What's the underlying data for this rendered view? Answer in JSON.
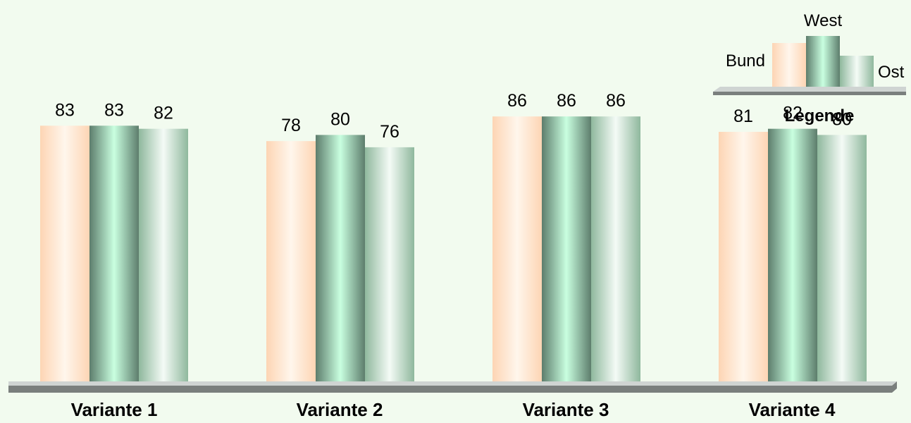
{
  "chart_data": {
    "type": "bar",
    "categories": [
      "Variante 1",
      "Variante 2",
      "Variante 3",
      "Variante 4"
    ],
    "series": [
      {
        "name": "Bund",
        "values": [
          83,
          78,
          86,
          81
        ],
        "colors": [
          "#fdd5b4",
          "#fff6ec"
        ]
      },
      {
        "name": "West",
        "values": [
          83,
          80,
          86,
          82
        ],
        "colors": [
          "#5d7d6c",
          "#c9ffe0"
        ]
      },
      {
        "name": "Ost",
        "values": [
          82,
          76,
          86,
          80
        ],
        "colors": [
          "#8fb89d",
          "#f4fbf6"
        ]
      }
    ],
    "legend": {
      "title": "Legende",
      "position": "top-right"
    },
    "data_labels": true,
    "grid": false
  },
  "colors": {
    "background": "#f2fbef",
    "floor_top": "#cfd4d2",
    "floor_front": "#7a7f7d",
    "text": "#000000"
  }
}
